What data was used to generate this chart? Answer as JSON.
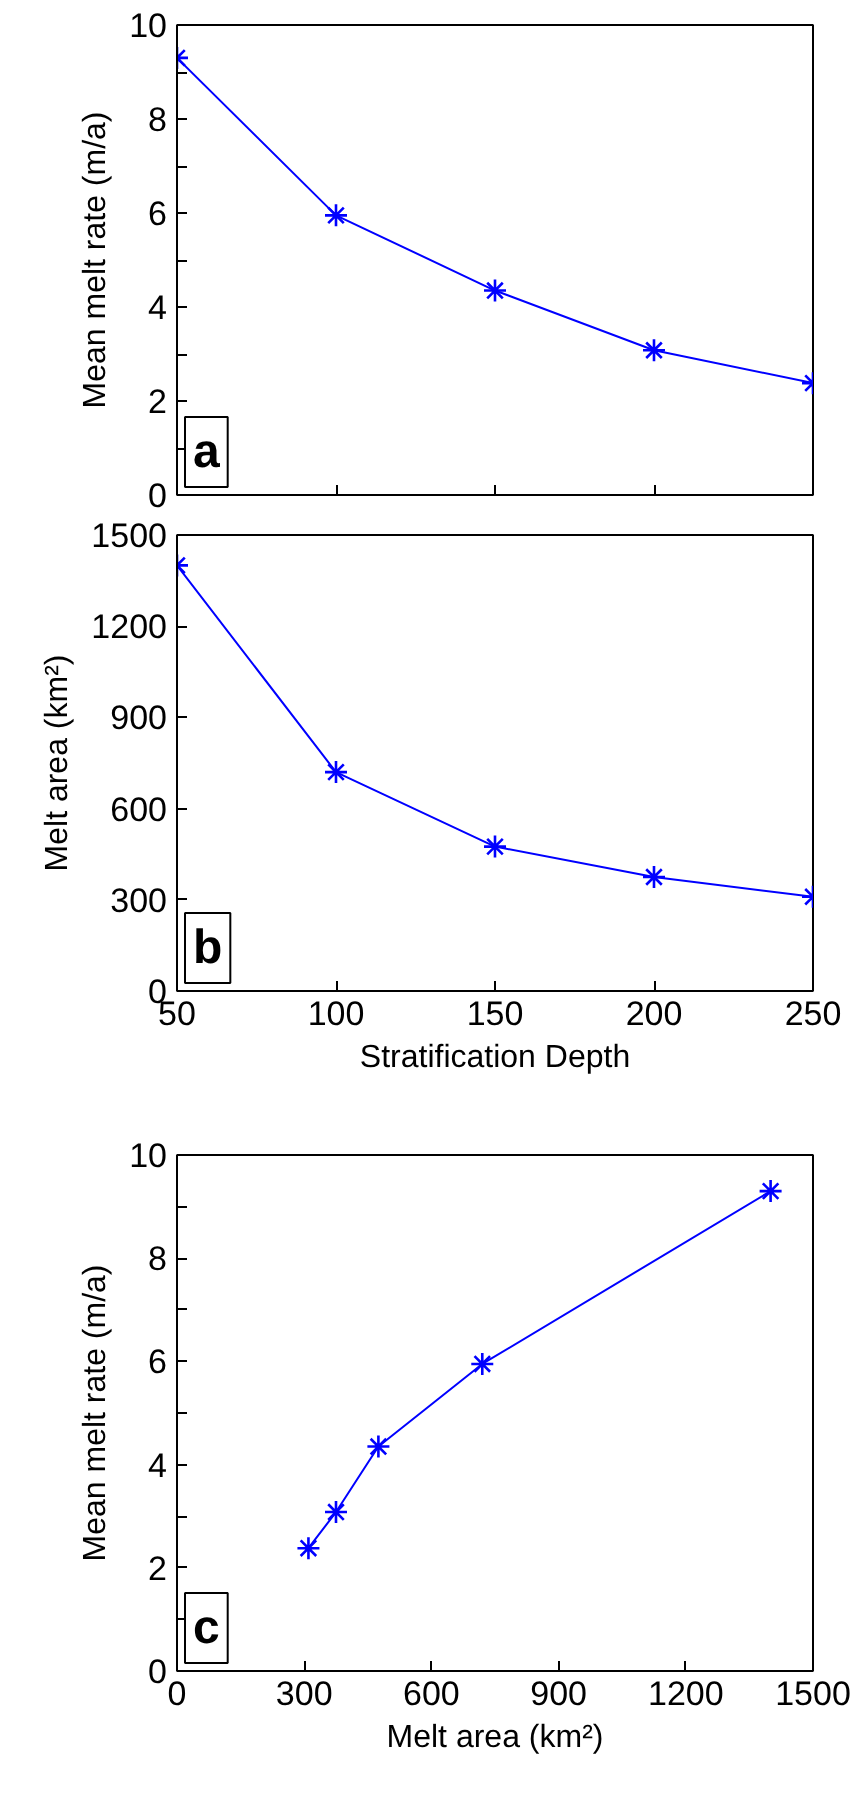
{
  "chart_data": [
    {
      "type": "line",
      "ylabel": "Mean melt rate (m/a)",
      "x": [
        50,
        100,
        150,
        200,
        250
      ],
      "series": [
        {
          "color": "#0000ff",
          "values": [
            9.3,
            5.95,
            4.35,
            3.08,
            2.38
          ]
        }
      ],
      "xlim": [
        50,
        250
      ],
      "xticks": [
        50,
        100,
        150,
        200,
        250
      ],
      "ylim": [
        0,
        10
      ],
      "yticks": [
        0,
        {
          "value": 1,
          "label": null
        },
        2,
        {
          "value": 3,
          "label": null
        },
        4,
        {
          "value": 5,
          "label": null
        },
        6,
        {
          "value": 7,
          "label": null
        },
        8,
        {
          "value": 9,
          "label": null
        },
        10
      ],
      "tick_labels": "y",
      "marker": "cross",
      "line_style": "solid",
      "grid": false,
      "annotations": [
        "a"
      ]
    },
    {
      "type": "line",
      "xlabel": "Stratification Depth",
      "ylabel": "Melt area (km²)",
      "x": [
        50,
        100,
        150,
        200,
        250
      ],
      "series": [
        {
          "color": "#0000ff",
          "values": [
            1400,
            720,
            475,
            375,
            310
          ]
        }
      ],
      "xlim": [
        50,
        250
      ],
      "xticks": [
        50,
        100,
        150,
        200,
        250
      ],
      "ylim": [
        0,
        1500
      ],
      "yticks": [
        0,
        300,
        600,
        900,
        1200,
        1500
      ],
      "marker": "cross",
      "line_style": "solid",
      "grid": false,
      "annotations": [
        "b"
      ]
    },
    {
      "type": "line",
      "xlabel": "Melt area (km²)",
      "ylabel": "Mean melt rate (m/a)",
      "series": [
        {
          "color": "#0000ff",
          "x": [
            1400,
            720,
            475,
            375,
            310
          ],
          "values": [
            9.3,
            5.95,
            4.35,
            3.08,
            2.38
          ]
        }
      ],
      "xlim": [
        0,
        1500
      ],
      "xticks": [
        0,
        300,
        600,
        900,
        1200,
        1500
      ],
      "ylim": [
        0,
        10
      ],
      "yticks": [
        0,
        {
          "value": 1,
          "label": null
        },
        2,
        {
          "value": 3,
          "label": null
        },
        4,
        {
          "value": 5,
          "label": null
        },
        6,
        {
          "value": 7,
          "label": null
        },
        8,
        {
          "value": 9,
          "label": null
        },
        10
      ],
      "marker": "cross",
      "line_style": "solid",
      "grid": false,
      "annotations": [
        "c"
      ]
    }
  ]
}
